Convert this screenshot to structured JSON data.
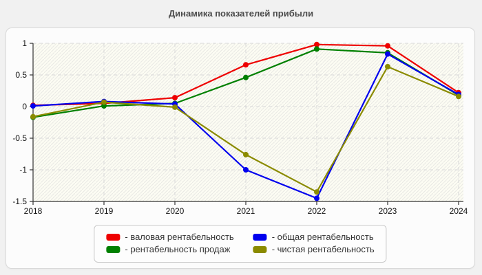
{
  "page": {
    "title": "Динамика показателей прибыли"
  },
  "chart_data": {
    "type": "line",
    "title": "Динамика показателей прибыли",
    "x": [
      2018,
      2019,
      2020,
      2021,
      2022,
      2023,
      2024
    ],
    "series": [
      {
        "name": "валовая рентабельность",
        "color": "#ee0000",
        "values": [
          0.02,
          0.05,
          0.14,
          0.66,
          0.98,
          0.96,
          0.22
        ]
      },
      {
        "name": "рентабельность продаж",
        "color": "#008000",
        "values": [
          -0.17,
          0.01,
          0.05,
          0.46,
          0.91,
          0.85,
          0.18
        ]
      },
      {
        "name": "общая рентабельность",
        "color": "#0000ee",
        "values": [
          0.01,
          0.08,
          0.04,
          -1.0,
          -1.45,
          0.83,
          0.19
        ]
      },
      {
        "name": "чистая рентабельность",
        "color": "#8b8b00",
        "values": [
          -0.16,
          0.07,
          -0.01,
          -0.76,
          -1.35,
          0.63,
          0.16
        ]
      }
    ],
    "ylim": [
      -1.5,
      1
    ],
    "yticks": [
      1,
      0.5,
      0,
      -0.5,
      -1,
      -1.5
    ],
    "xlabel": "",
    "ylabel": "",
    "grid": true,
    "legend_position": "bottom"
  },
  "legend": {
    "items": [
      {
        "label": "- валовая рентабельность",
        "color": "#ee0000"
      },
      {
        "label": "- общая рентабельность",
        "color": "#0000ee"
      },
      {
        "label": "- рентабельность продаж",
        "color": "#008000"
      },
      {
        "label": "- чистая рентабельность",
        "color": "#8b8b00"
      }
    ]
  },
  "style": {
    "grid_color": "#d8d8d8",
    "axis_color": "#333333",
    "tick_label_color": "#111111",
    "plot_bg": "#fcfcf3",
    "hatch_color": "#e9e9e4"
  }
}
